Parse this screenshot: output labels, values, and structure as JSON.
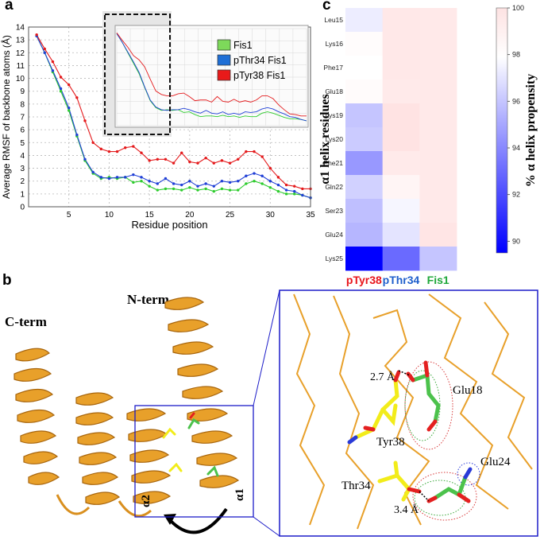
{
  "panels": {
    "a": "a",
    "b": "b",
    "c": "c"
  },
  "chart_data": [
    {
      "type": "line",
      "xlabel": "Residue position",
      "ylabel": "Average RMSF of backbone atoms (Å)",
      "xlim": [
        0,
        35
      ],
      "ylim": [
        0,
        14
      ],
      "x_ticks": [
        5,
        10,
        15,
        20,
        25,
        30,
        35
      ],
      "y_ticks": [
        0,
        1,
        2,
        3,
        4,
        5,
        6,
        7,
        8,
        9,
        10,
        11,
        12,
        13,
        14
      ],
      "grid": true,
      "legend_position": "inset top-right",
      "x": [
        1,
        2,
        3,
        4,
        5,
        6,
        7,
        8,
        9,
        10,
        11,
        12,
        13,
        14,
        15,
        16,
        17,
        18,
        19,
        20,
        21,
        22,
        23,
        24,
        25,
        26,
        27,
        28,
        29,
        30,
        31,
        32,
        33,
        34,
        35
      ],
      "series": [
        {
          "name": "Fis1",
          "color": "#2ecc2e",
          "values": [
            13.3,
            12.0,
            10.5,
            9.0,
            7.5,
            5.5,
            3.6,
            2.6,
            2.2,
            2.3,
            2.2,
            2.3,
            1.9,
            2.0,
            1.6,
            1.3,
            1.4,
            1.4,
            1.3,
            1.5,
            1.3,
            1.4,
            1.2,
            1.4,
            1.3,
            1.3,
            1.8,
            2.0,
            1.8,
            1.5,
            1.2,
            1.0,
            1.0,
            0.9,
            0.7
          ]
        },
        {
          "name": "pThr34 Fis1",
          "color": "#1f3fd6",
          "values": [
            13.3,
            12.0,
            10.6,
            9.2,
            7.7,
            5.6,
            3.7,
            2.7,
            2.3,
            2.2,
            2.3,
            2.3,
            2.5,
            2.3,
            2.0,
            1.8,
            2.2,
            1.8,
            1.7,
            2.0,
            1.6,
            1.8,
            1.6,
            2.0,
            1.9,
            2.0,
            2.4,
            2.6,
            2.4,
            2.0,
            1.7,
            1.3,
            1.2,
            0.9,
            0.7
          ]
        },
        {
          "name": "pTyr38 Fis1",
          "color": "#e41a1c",
          "values": [
            13.4,
            12.3,
            11.3,
            10.1,
            9.5,
            8.5,
            6.7,
            5.0,
            4.5,
            4.3,
            4.3,
            4.6,
            4.7,
            4.2,
            3.6,
            3.7,
            3.7,
            3.4,
            4.2,
            3.5,
            3.4,
            3.8,
            3.4,
            3.6,
            3.4,
            3.7,
            4.3,
            4.3,
            3.9,
            3.0,
            2.3,
            1.7,
            1.6,
            1.4,
            1.4
          ]
        }
      ],
      "legend": [
        "Fis1",
        "pThr34 Fis1",
        "pTyr38 Fis1"
      ]
    },
    {
      "type": "heatmap",
      "ylabel": "α1 helix residues",
      "colorbar_label": "% α helix propensity",
      "colorbar_ticks": [
        90,
        92,
        94,
        96,
        98,
        100
      ],
      "vmin": 89.5,
      "vmax": 100,
      "columns": [
        {
          "name": "pTyr38",
          "color": "#e8151b"
        },
        {
          "name": "pThr34",
          "color": "#1f5fcc"
        },
        {
          "name": "Fis1",
          "color": "#1fa83a"
        }
      ],
      "rows": [
        "Leu15",
        "Lys16",
        "Phe17",
        "Glu18",
        "Lys19",
        "Lys20",
        "Phe21",
        "Gln22",
        "Ser23",
        "Glu24",
        "Lys25"
      ],
      "values": [
        [
          97.3,
          99.6,
          99.5
        ],
        [
          98.1,
          99.6,
          99.5
        ],
        [
          97.9,
          99.6,
          99.5
        ],
        [
          98.2,
          99.4,
          99.5
        ],
        [
          96.0,
          99.9,
          99.5
        ],
        [
          96.2,
          99.9,
          99.5
        ],
        [
          94.5,
          99.4,
          99.5
        ],
        [
          96.4,
          98.6,
          99.5
        ],
        [
          95.8,
          97.6,
          99.5
        ],
        [
          95.5,
          97.0,
          99.8
        ],
        [
          89.5,
          93.0,
          96.0
        ]
      ]
    }
  ],
  "structure": {
    "n_term": "N-term",
    "c_term": "C-term",
    "helix1": "α1",
    "helix2": "α2",
    "residues": {
      "glu18": "Glu18",
      "tyr38": "Tyr38",
      "glu24": "Glu24",
      "thr34": "Thr34"
    },
    "distances": {
      "d1": "2.7 Å",
      "d2": "3.4 Å"
    },
    "colors": {
      "ribbon": "#e8a02a",
      "frame": "#1c1cc8",
      "carbon_tyr": "#f2ec1a",
      "carbon_glu": "#4cc24c",
      "oxygen": "#e42020",
      "nitrogen": "#2a3ad8"
    }
  }
}
